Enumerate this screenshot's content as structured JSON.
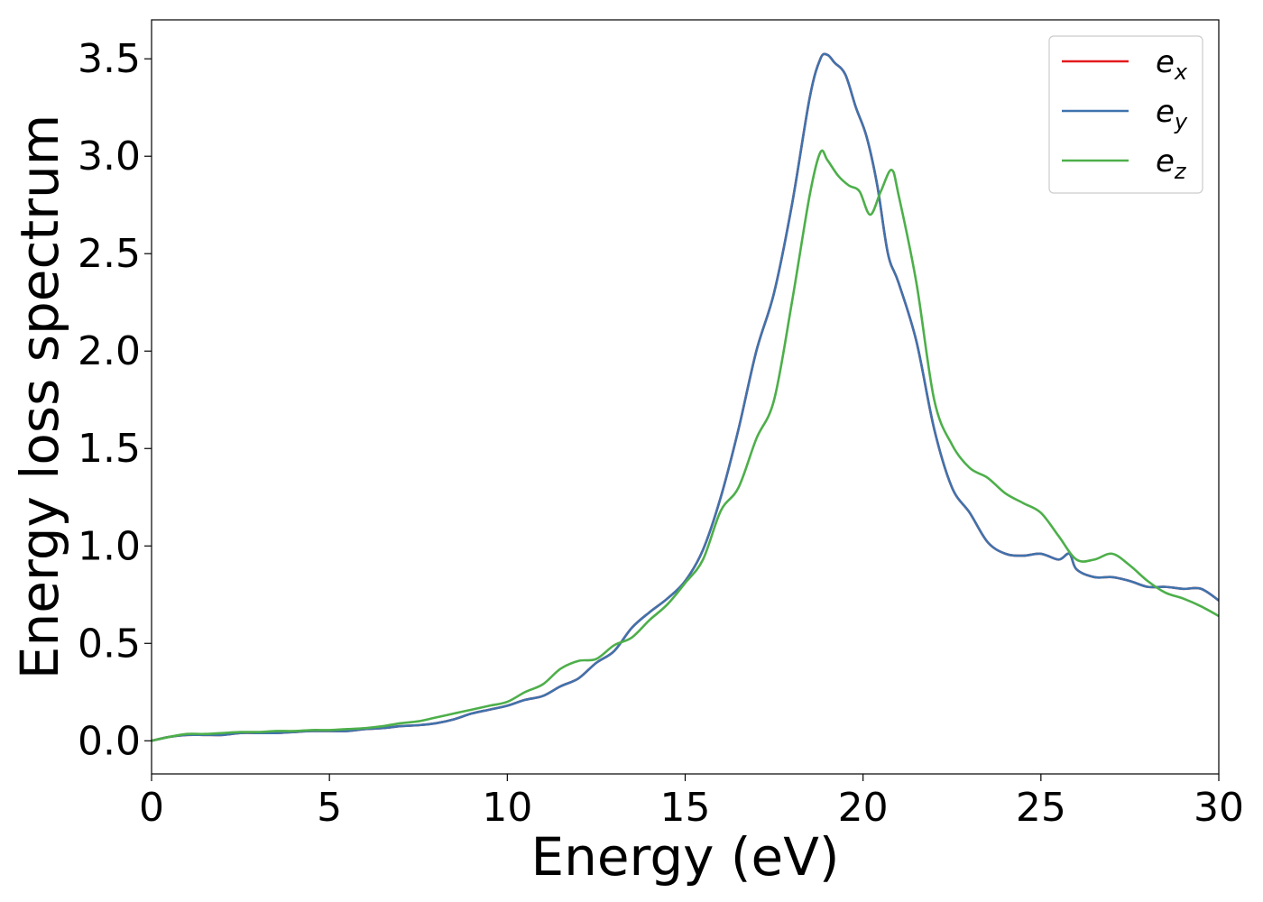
{
  "chart_data": {
    "type": "line",
    "title": "",
    "xlabel": "Energy (eV)",
    "ylabel": "Energy loss spectrum",
    "xlim": [
      0,
      30
    ],
    "ylim": [
      -0.17,
      3.7
    ],
    "xticks": [
      0,
      5,
      10,
      15,
      20,
      25,
      30
    ],
    "xtick_labels": [
      "0",
      "5",
      "10",
      "15",
      "20",
      "25",
      "30"
    ],
    "yticks": [
      0.0,
      0.5,
      1.0,
      1.5,
      2.0,
      2.5,
      3.0,
      3.5
    ],
    "ytick_labels": [
      "0.0",
      "0.5",
      "1.0",
      "1.5",
      "2.0",
      "2.5",
      "3.0",
      "3.5"
    ],
    "grid": false,
    "legend_position": "top-right",
    "series": [
      {
        "name": "e",
        "subscript": "x",
        "color": "#e41a1c",
        "x": [
          0,
          0.5,
          1,
          1.5,
          2,
          2.5,
          3,
          3.5,
          4,
          4.5,
          5,
          5.5,
          6,
          6.5,
          7,
          7.5,
          8,
          8.5,
          9,
          9.5,
          10,
          10.5,
          11,
          11.5,
          12,
          12.5,
          13,
          13.5,
          14,
          14.5,
          15,
          15.5,
          16,
          16.5,
          17,
          17.5,
          18,
          18.5,
          18.8,
          19.0,
          19.2,
          19.5,
          19.8,
          20.1,
          20.4,
          20.7,
          21,
          21.5,
          22,
          22.5,
          23,
          23.5,
          24,
          24.5,
          25,
          25.5,
          25.8,
          26,
          26.5,
          27,
          27.5,
          28,
          28.5,
          29,
          29.5,
          30
        ],
        "y": [
          0.0,
          0.02,
          0.03,
          0.03,
          0.03,
          0.04,
          0.04,
          0.04,
          0.045,
          0.05,
          0.05,
          0.05,
          0.06,
          0.065,
          0.075,
          0.08,
          0.09,
          0.11,
          0.14,
          0.16,
          0.18,
          0.21,
          0.23,
          0.28,
          0.32,
          0.4,
          0.46,
          0.58,
          0.66,
          0.73,
          0.82,
          0.98,
          1.25,
          1.6,
          2.0,
          2.3,
          2.75,
          3.3,
          3.5,
          3.52,
          3.48,
          3.42,
          3.25,
          3.1,
          2.85,
          2.5,
          2.35,
          2.05,
          1.6,
          1.3,
          1.17,
          1.02,
          0.96,
          0.95,
          0.96,
          0.93,
          0.96,
          0.88,
          0.84,
          0.84,
          0.82,
          0.79,
          0.79,
          0.78,
          0.78,
          0.72
        ]
      },
      {
        "name": "e",
        "subscript": "y",
        "color": "#3f73ad",
        "x": [
          0,
          0.5,
          1,
          1.5,
          2,
          2.5,
          3,
          3.5,
          4,
          4.5,
          5,
          5.5,
          6,
          6.5,
          7,
          7.5,
          8,
          8.5,
          9,
          9.5,
          10,
          10.5,
          11,
          11.5,
          12,
          12.5,
          13,
          13.5,
          14,
          14.5,
          15,
          15.5,
          16,
          16.5,
          17,
          17.5,
          18,
          18.5,
          18.8,
          19.0,
          19.2,
          19.5,
          19.8,
          20.1,
          20.4,
          20.7,
          21,
          21.5,
          22,
          22.5,
          23,
          23.5,
          24,
          24.5,
          25,
          25.5,
          25.8,
          26,
          26.5,
          27,
          27.5,
          28,
          28.5,
          29,
          29.5,
          30
        ],
        "y": [
          0.0,
          0.02,
          0.03,
          0.03,
          0.03,
          0.04,
          0.04,
          0.04,
          0.045,
          0.05,
          0.05,
          0.05,
          0.06,
          0.065,
          0.075,
          0.08,
          0.09,
          0.11,
          0.14,
          0.16,
          0.18,
          0.21,
          0.23,
          0.28,
          0.32,
          0.4,
          0.46,
          0.58,
          0.66,
          0.73,
          0.82,
          0.98,
          1.25,
          1.6,
          2.0,
          2.3,
          2.75,
          3.3,
          3.5,
          3.52,
          3.48,
          3.42,
          3.25,
          3.1,
          2.85,
          2.5,
          2.35,
          2.05,
          1.6,
          1.3,
          1.17,
          1.02,
          0.96,
          0.95,
          0.96,
          0.93,
          0.96,
          0.88,
          0.84,
          0.84,
          0.82,
          0.79,
          0.79,
          0.78,
          0.78,
          0.72
        ]
      },
      {
        "name": "e",
        "subscript": "z",
        "color": "#4daf4a",
        "x": [
          0,
          0.5,
          1,
          1.5,
          2,
          2.5,
          3,
          3.5,
          4,
          4.5,
          5,
          5.5,
          6,
          6.5,
          7,
          7.5,
          8,
          8.5,
          9,
          9.5,
          10,
          10.5,
          11,
          11.5,
          12,
          12.5,
          13,
          13.5,
          14,
          14.5,
          15,
          15.5,
          16,
          16.5,
          17,
          17.5,
          18,
          18.5,
          18.8,
          19.0,
          19.3,
          19.6,
          19.9,
          20.2,
          20.5,
          20.8,
          21,
          21.5,
          22,
          22.5,
          23,
          23.5,
          24,
          24.5,
          25,
          25.5,
          26,
          26.5,
          27,
          27.5,
          28,
          28.5,
          29,
          29.5,
          30
        ],
        "y": [
          0.0,
          0.02,
          0.035,
          0.035,
          0.04,
          0.045,
          0.045,
          0.05,
          0.05,
          0.055,
          0.055,
          0.06,
          0.065,
          0.075,
          0.09,
          0.1,
          0.12,
          0.14,
          0.16,
          0.18,
          0.2,
          0.25,
          0.29,
          0.37,
          0.41,
          0.42,
          0.49,
          0.53,
          0.62,
          0.7,
          0.81,
          0.93,
          1.18,
          1.3,
          1.55,
          1.75,
          2.25,
          2.8,
          3.02,
          2.98,
          2.9,
          2.85,
          2.82,
          2.7,
          2.82,
          2.93,
          2.8,
          2.35,
          1.75,
          1.52,
          1.4,
          1.35,
          1.27,
          1.22,
          1.17,
          1.05,
          0.93,
          0.93,
          0.96,
          0.9,
          0.82,
          0.76,
          0.73,
          0.69,
          0.64
        ]
      }
    ]
  }
}
